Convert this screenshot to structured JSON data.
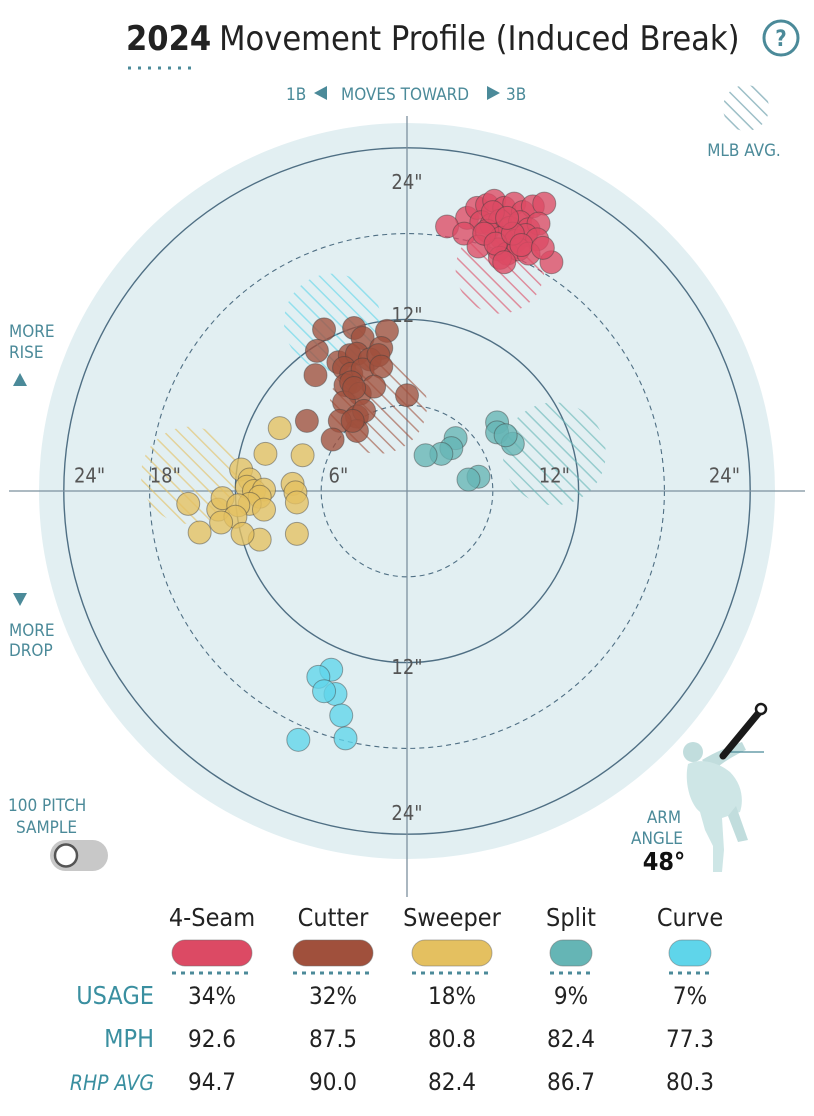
{
  "header": {
    "year": "2024",
    "title": "Movement Profile (Induced Break)",
    "help_label": "?"
  },
  "direction": {
    "left_label": "1B",
    "center_label": "MOVES TOWARD",
    "right_label": "3B"
  },
  "labels": {
    "mlb_avg": "MLB AVG.",
    "more_rise_1": "MORE",
    "more_rise_2": "RISE",
    "more_drop_1": "MORE",
    "more_drop_2": "DROP",
    "sample_1": "100 PITCH",
    "sample_2": "SAMPLE",
    "arm_angle_1": "ARM",
    "arm_angle_2": "ANGLE",
    "arm_angle_value": "48°"
  },
  "toggle": {
    "on": false
  },
  "chart_data": {
    "type": "scatter",
    "title": "Movement Profile (Induced Break)",
    "xlabel": "",
    "ylabel": "",
    "xlim": [
      -24,
      24
    ],
    "ylim": [
      -24,
      24
    ],
    "ring_values": [
      6,
      12,
      18,
      24
    ],
    "ring_labels": [
      {
        "text": "24\"",
        "x": 0,
        "y": 21.6
      },
      {
        "text": "12\"",
        "x": 0,
        "y": 12.3
      },
      {
        "text": "12\"",
        "x": 0,
        "y": -12.3
      },
      {
        "text": "24\"",
        "x": 0,
        "y": -22.5
      },
      {
        "text": "24\"",
        "x": -22.2,
        "y": 1.1
      },
      {
        "text": "18\"",
        "x": -16.9,
        "y": 1.1
      },
      {
        "text": "6\"",
        "x": -4.8,
        "y": 1.1
      },
      {
        "text": "12\"",
        "x": 10.3,
        "y": 1.1
      },
      {
        "text": "24\"",
        "x": 22.2,
        "y": 1.1
      }
    ],
    "series": [
      {
        "name": "4-Seam",
        "color": "#dc4a64",
        "usage": "34%",
        "mph": "92.6",
        "rhp_avg": "94.7",
        "mlb_avg": {
          "x": 6.5,
          "y": 15.5,
          "r": 3.1
        },
        "points": [
          [
            4.2,
            19.1
          ],
          [
            4.9,
            19.8
          ],
          [
            5.6,
            20.0
          ],
          [
            6.1,
            20.3
          ],
          [
            6.8,
            19.8
          ],
          [
            7.5,
            20.1
          ],
          [
            8.1,
            19.5
          ],
          [
            8.8,
            19.9
          ],
          [
            9.6,
            20.1
          ],
          [
            5.2,
            18.8
          ],
          [
            5.9,
            18.6
          ],
          [
            6.5,
            18.9
          ],
          [
            7.2,
            18.4
          ],
          [
            7.9,
            18.8
          ],
          [
            8.5,
            18.3
          ],
          [
            9.2,
            18.7
          ],
          [
            2.8,
            18.5
          ],
          [
            4.0,
            18.0
          ],
          [
            5.6,
            18.2
          ],
          [
            6.6,
            17.7
          ],
          [
            7.6,
            17.5
          ],
          [
            8.3,
            17.9
          ],
          [
            9.1,
            17.6
          ],
          [
            5.0,
            17.1
          ],
          [
            6.4,
            16.9
          ],
          [
            7.0,
            16.6
          ],
          [
            7.8,
            16.9
          ],
          [
            6.5,
            16.3
          ],
          [
            8.5,
            16.6
          ],
          [
            10.1,
            16.0
          ],
          [
            5.4,
            18.0
          ],
          [
            6.2,
            17.3
          ],
          [
            7.4,
            18.0
          ],
          [
            6.0,
            19.5
          ],
          [
            7.0,
            19.1
          ],
          [
            8.0,
            17.2
          ],
          [
            6.8,
            16.0
          ],
          [
            9.5,
            17.0
          ]
        ]
      },
      {
        "name": "Cutter",
        "color": "#a0503c",
        "usage": "32%",
        "mph": "87.5",
        "rhp_avg": "90.0",
        "mlb_avg": {
          "x": -2.0,
          "y": 6.0,
          "r": 3.4
        },
        "points": [
          [
            -5.8,
            11.3
          ],
          [
            -3.7,
            11.4
          ],
          [
            -1.4,
            11.2
          ],
          [
            -3.1,
            10.7
          ],
          [
            -1.8,
            10.0
          ],
          [
            -6.3,
            9.8
          ],
          [
            -4.8,
            9.0
          ],
          [
            -4.0,
            9.5
          ],
          [
            -3.5,
            9.6
          ],
          [
            -2.6,
            9.2
          ],
          [
            -4.4,
            8.6
          ],
          [
            -3.9,
            8.2
          ],
          [
            -3.1,
            8.5
          ],
          [
            -2.0,
            9.5
          ],
          [
            -1.8,
            8.7
          ],
          [
            -6.4,
            8.1
          ],
          [
            -4.3,
            7.4
          ],
          [
            -3.9,
            7.6
          ],
          [
            -3.3,
            6.8
          ],
          [
            -2.3,
            7.3
          ],
          [
            -4.4,
            6.2
          ],
          [
            -3.5,
            5.2
          ],
          [
            0.0,
            6.7
          ],
          [
            -3.0,
            5.6
          ],
          [
            -3.5,
            4.2
          ],
          [
            -4.7,
            4.9
          ],
          [
            -7.0,
            4.9
          ],
          [
            -5.2,
            3.6
          ],
          [
            -3.8,
            4.9
          ],
          [
            -3.7,
            7.2
          ]
        ]
      },
      {
        "name": "Sweeper",
        "color": "#e4c060",
        "usage": "18%",
        "mph": "80.8",
        "rhp_avg": "82.4",
        "mlb_avg": {
          "x": -15.2,
          "y": 1.1,
          "r": 3.4
        },
        "points": [
          [
            -8.9,
            4.4
          ],
          [
            -9.9,
            2.6
          ],
          [
            -7.3,
            2.5
          ],
          [
            -11.6,
            1.5
          ],
          [
            -11.0,
            0.8
          ],
          [
            -11.2,
            0.3
          ],
          [
            -10.7,
            0.0
          ],
          [
            -10.0,
            0.1
          ],
          [
            -8.0,
            0.5
          ],
          [
            -7.8,
            -0.1
          ],
          [
            -10.3,
            -0.4
          ],
          [
            -11.0,
            -0.9
          ],
          [
            -10.0,
            -1.3
          ],
          [
            -13.2,
            -1.3
          ],
          [
            -15.3,
            -0.9
          ],
          [
            -12.9,
            -0.5
          ],
          [
            -11.8,
            -1.0
          ],
          [
            -7.7,
            -0.8
          ],
          [
            -12.0,
            -1.8
          ],
          [
            -13.0,
            -2.2
          ],
          [
            -10.3,
            -3.4
          ],
          [
            -14.5,
            -2.9
          ],
          [
            -11.5,
            -3.0
          ],
          [
            -7.7,
            -3.0
          ]
        ]
      },
      {
        "name": "Split",
        "color": "#65b5b5",
        "usage": "9%",
        "mph": "82.4",
        "rhp_avg": "86.7",
        "mlb_avg": {
          "x": 10.3,
          "y": 2.6,
          "r": 3.6
        },
        "points": [
          [
            6.3,
            4.8
          ],
          [
            6.3,
            4.1
          ],
          [
            7.4,
            3.3
          ],
          [
            6.9,
            3.9
          ],
          [
            3.4,
            3.7
          ],
          [
            3.1,
            3.0
          ],
          [
            2.4,
            2.6
          ],
          [
            1.3,
            2.5
          ],
          [
            5.0,
            1.0
          ],
          [
            4.3,
            0.8
          ]
        ]
      },
      {
        "name": "Curve",
        "color": "#5fd5ea",
        "usage": "7%",
        "mph": "77.3",
        "rhp_avg": "80.3",
        "mlb_avg": {
          "x": -5.2,
          "y": 11.8,
          "r": 3.4
        },
        "points": [
          [
            -5.3,
            -12.5
          ],
          [
            -6.2,
            -13.0
          ],
          [
            -5.0,
            -14.2
          ],
          [
            -5.8,
            -14.0
          ],
          [
            -4.6,
            -15.7
          ],
          [
            -4.3,
            -17.3
          ],
          [
            -7.6,
            -17.4
          ]
        ]
      }
    ],
    "legend": [
      "4-Seam",
      "Cutter",
      "Sweeper",
      "Split",
      "Curve"
    ]
  },
  "table": {
    "row_labels": [
      "USAGE",
      "MPH",
      "RHP AVG"
    ]
  },
  "colors": {
    "accent": "#4b8a99",
    "disc": "#e2eff2",
    "ring": "#4f6f84",
    "axis": "#7c909e"
  }
}
